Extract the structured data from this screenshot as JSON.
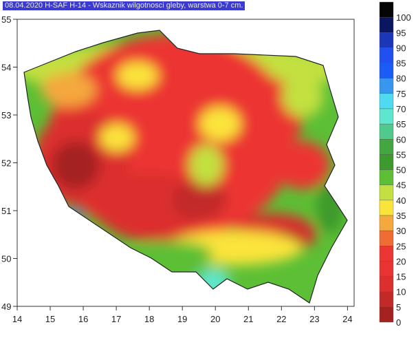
{
  "title": "08.04.2020 H-SAF H-14 - Wskaznik wilgotnosci gleby, warstwa 0-7 cm.",
  "map": {
    "x_ticks": [
      "14",
      "15",
      "16",
      "17",
      "18",
      "19",
      "20",
      "21",
      "22",
      "23",
      "24"
    ],
    "y_ticks": [
      "55",
      "54",
      "53",
      "52",
      "51",
      "50",
      "49"
    ],
    "x_range": [
      14,
      24.2
    ],
    "y_range": [
      49,
      55
    ]
  },
  "legend": {
    "labels": [
      "100",
      "95",
      "90",
      "85",
      "80",
      "75",
      "70",
      "65",
      "60",
      "55",
      "50",
      "45",
      "40",
      "35",
      "30",
      "25",
      "20",
      "15",
      "10",
      "5",
      "0"
    ],
    "colors": [
      "#050505",
      "#0a1660",
      "#1c36b8",
      "#2050f0",
      "#1a5cf5",
      "#3797ef",
      "#4fdaf2",
      "#5ee6cf",
      "#4fc98c",
      "#43a640",
      "#3d9a2c",
      "#5cbf35",
      "#c3e040",
      "#fbe43a",
      "#f4a83e",
      "#ef6c35",
      "#ec3633",
      "#e93433",
      "#dc2f2f",
      "#c22929",
      "#a52222"
    ]
  }
}
